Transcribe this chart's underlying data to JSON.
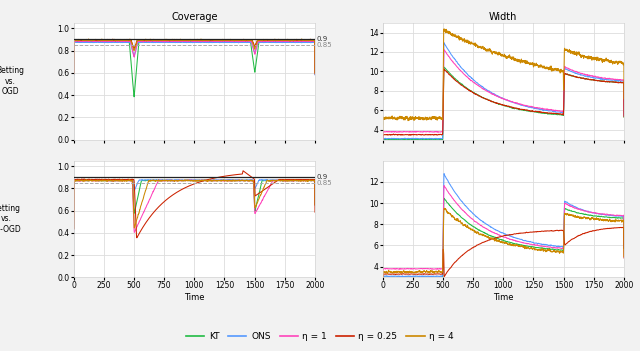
{
  "title_coverage": "Coverage",
  "title_width": "Width",
  "xlabel": "Time",
  "ylabel_top": "Betting\nvs.\nOGD",
  "ylabel_bot": "Betting\nvs.\nSF-OGD",
  "colors": {
    "KT": "#22bb44",
    "ONS": "#5599ff",
    "eta1": "#ff44bb",
    "eta025": "#cc2200",
    "eta4": "#cc8800"
  },
  "legend_labels": [
    "KT",
    "ONS",
    "η = 1",
    "η = 0.25",
    "η = 4"
  ],
  "T": 2000,
  "shift1": 500,
  "shift2": 1500,
  "bg_color": "#ffffff",
  "grid_color": "#dddddd",
  "hline_main": "#222222",
  "hline_dash": "#aaaaaa",
  "fig_bg": "#f2f2f2"
}
